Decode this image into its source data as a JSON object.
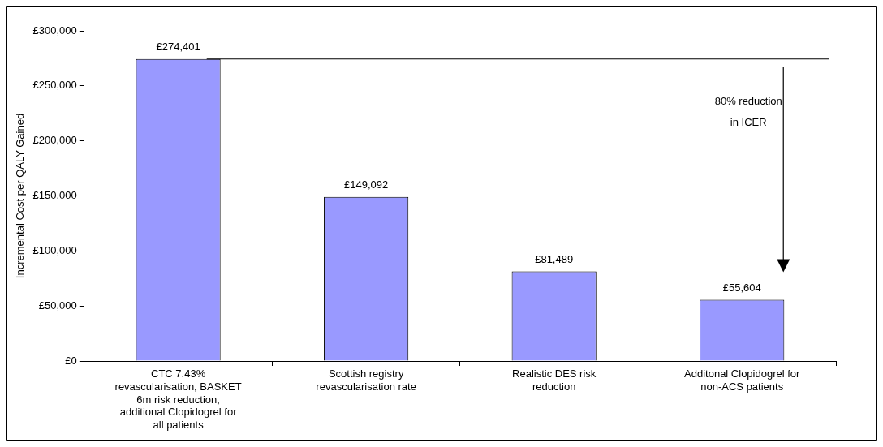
{
  "chart_data": {
    "type": "bar",
    "ylabel": "Incremental Cost per QALY Gained",
    "categories": [
      "CTC 7.43% revascularisation, BASKET 6m risk reduction, additional Clopidogrel for all patients",
      "Scottish registry revascularisation rate",
      "Realistic DES risk reduction",
      "Additonal Clopidogrel for non-ACS patients"
    ],
    "values": [
      274401,
      149092,
      81489,
      55604
    ],
    "value_labels": [
      "£274,401",
      "£149,092",
      "£81,489",
      "£55,604"
    ],
    "color": "#9999ff",
    "ylim": [
      0,
      300000
    ],
    "yticks": [
      {
        "value": 0,
        "label": "£0"
      },
      {
        "value": 50000,
        "label": "£50,000"
      },
      {
        "value": 100000,
        "label": "£100,000"
      },
      {
        "value": 150000,
        "label": "£150,000"
      },
      {
        "value": 200000,
        "label": "£200,000"
      },
      {
        "value": 250000,
        "label": "£250,000"
      },
      {
        "value": 300000,
        "label": "£300,000"
      }
    ],
    "ref_lines": [
      {
        "axis": "y",
        "value": 274401
      }
    ],
    "annotations": [
      "80% reduction in ICER"
    ],
    "grid": false,
    "legend": false
  }
}
